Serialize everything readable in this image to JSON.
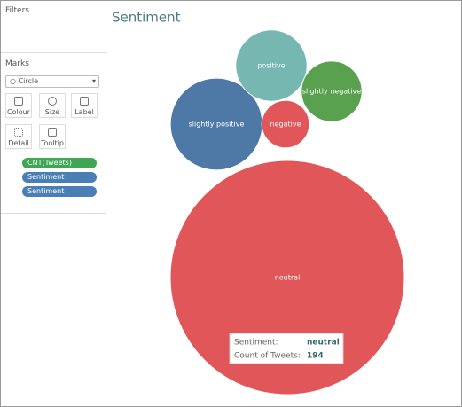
{
  "sidebar": {
    "filters_title": "Filters",
    "marks_title": "Marks",
    "mark_type": "Circle",
    "buttons": [
      "Colour",
      "Size",
      "Label",
      "Detail",
      "Tooltip"
    ],
    "pills": [
      "CNT(Tweets)",
      "Sentiment",
      "Sentiment"
    ]
  },
  "chart_data": {
    "type": "bubble",
    "title": "Sentiment",
    "categories": [
      "neutral",
      "slightly positive",
      "positive",
      "slightly negative",
      "negative"
    ],
    "values": [
      194,
      30,
      18,
      13,
      8
    ],
    "colors": [
      "#e15759",
      "#4e79a7",
      "#76b7b2",
      "#59a14f",
      "#e15759"
    ],
    "tooltip": {
      "category_label": "Sentiment:",
      "value_label": "Count of Tweets:"
    }
  }
}
